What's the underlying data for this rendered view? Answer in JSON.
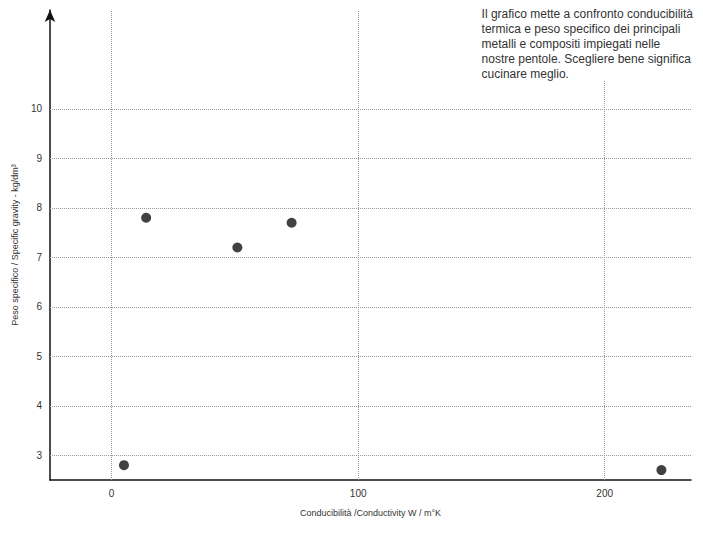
{
  "chart_data": {
    "type": "scatter",
    "annotation": [
      "Il grafico mette a confronto conducibilità",
      "termica e peso specifico dei principali",
      "metalli e compositi impiegati nelle",
      "nostre pentole. Scegliere bene significa",
      "cucinare meglio."
    ],
    "xlabel": "Conducibilità /Conductivity W / m°K",
    "ylabel": "Peso specifico / Specific gravity - kg/dm³",
    "x": [
      14,
      73,
      51,
      5,
      223
    ],
    "values": [
      7.8,
      7.7,
      7.2,
      2.8,
      2.7
    ],
    "color": "#111111",
    "marker": "circle",
    "xlim": [
      -25,
      235
    ],
    "ylim": [
      2.5,
      12
    ],
    "xticks": [
      0,
      100,
      200
    ],
    "yticks": [
      3,
      4,
      5,
      6,
      7,
      8,
      9,
      10
    ],
    "grid": true
  }
}
